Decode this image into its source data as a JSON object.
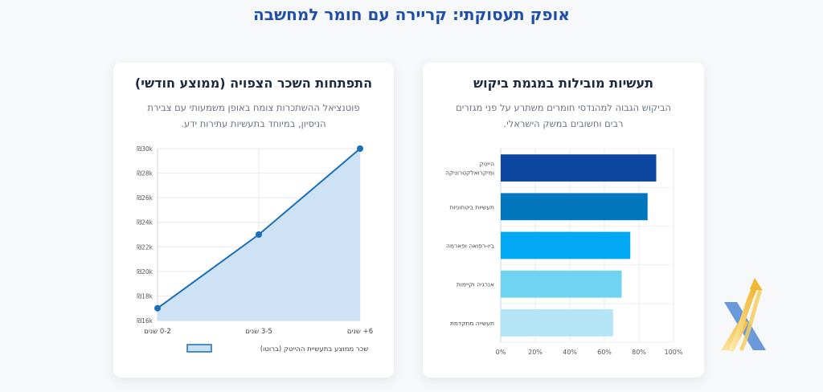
{
  "page": {
    "title": "אופק תעסוקתי: קריירה עם חומר למחשבה"
  },
  "cards": {
    "salary": {
      "title": "התפתחות השכר הצפויה (ממוצע חודשי)",
      "subtitle": "פוטנציאל ההשתכרות צומח באופן משמעותי עם צבירת הניסיון, במיוחד בתעשיות עתירות ידע."
    },
    "industries": {
      "title": "תעשיות מובילות במגמת ביקוש",
      "subtitle": "הביקוש הגבוה למהנדסי חומרים משתרע על פני מגזרים רבים וחשובים במשק הישראלי."
    }
  },
  "chart_data": [
    {
      "type": "area",
      "categories": [
        "0-2 שנים",
        "3-5 שנים",
        "6+ שנים"
      ],
      "series": [
        {
          "name": "שכר ממוצע בתעשיית ההייטק (ברוטו)",
          "values": [
            17000,
            23000,
            30000
          ]
        }
      ],
      "ylim": [
        16000,
        30000
      ],
      "yticks": [
        {
          "value": 16000,
          "label": "₪16k"
        },
        {
          "value": 18000,
          "label": "₪18k"
        },
        {
          "value": 20000,
          "label": "₪20k"
        },
        {
          "value": 22000,
          "label": "₪22k"
        },
        {
          "value": 24000,
          "label": "₪24k"
        },
        {
          "value": 26000,
          "label": "₪26k"
        },
        {
          "value": 28000,
          "label": "₪28k"
        },
        {
          "value": 30000,
          "label": "₪30k"
        }
      ],
      "grid": true,
      "legend_position": "bottom",
      "colors": {
        "line": "#1a6fb8",
        "fill": "#c8e0f4"
      }
    },
    {
      "type": "bar",
      "orientation": "horizontal",
      "categories": [
        [
          "הייטק",
          "ומיקרואלקטרוניקה"
        ],
        [
          "תעשיות ביטחוניות"
        ],
        [
          "ביו-רפואה ופארמה"
        ],
        [
          "אנרגיה וקיימות"
        ],
        [
          "תעשייה מתקדמת"
        ]
      ],
      "values": [
        90,
        85,
        75,
        70,
        65
      ],
      "xlim": [
        0,
        100
      ],
      "xticks": [
        "0%",
        "20%",
        "40%",
        "60%",
        "80%",
        "100%"
      ],
      "grid": true,
      "colors": [
        "#0d47a1",
        "#0277bd",
        "#03a9f4",
        "#6fd3f2",
        "#b3e5f7"
      ]
    }
  ],
  "logo": {
    "name": "x-logo-icon",
    "colors": [
      "#5b8fd6",
      "#f5c242"
    ]
  }
}
